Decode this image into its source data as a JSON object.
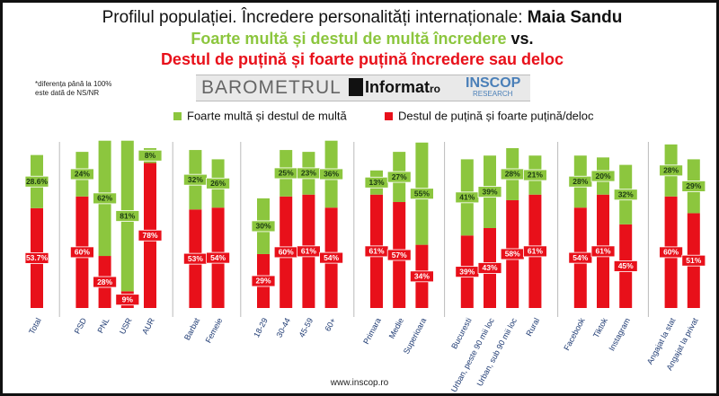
{
  "header": {
    "title": "Profilul populației. Încredere personalități internaționale: ",
    "title_name": "Maia Sandu",
    "subtitle_positive": "Foarte multă și destul de multă încredere",
    "subtitle_vs": " vs.",
    "subtitle_negative": "Destul de puțină și foarte puțină încredere sau deloc"
  },
  "note": [
    "*diferența până la 100%",
    "este dată de NS/NR"
  ],
  "logos": {
    "barometrul": "BAROMETRUL",
    "informat": "Informat",
    "informat_suffix": "ro",
    "inscop": "INSCOP",
    "inscop_sub": "RESEARCH"
  },
  "footer": "www.inscop.ro",
  "chart_data": {
    "type": "stacked-bar",
    "categories": [
      "Total",
      null,
      "PSD",
      "PNL",
      "USR",
      "AUR",
      null,
      "Barbat",
      "Femeie",
      null,
      "18-29",
      "30-44",
      "45-59",
      "60+",
      null,
      "Primara",
      "Medie",
      "Superioara",
      null,
      "Bucuresti",
      "Urban, peste 90 mii loc",
      "Urban, sub 90 mii loc",
      "Rural",
      null,
      "Facebook",
      "Tiktok",
      "Instagram",
      null,
      "Angajat la stat",
      "Angajat la privat"
    ],
    "series": [
      {
        "name": "Destul de puțină și foarte puțină/deloc",
        "color": "#e8101a",
        "values": [
          53.7,
          null,
          60,
          28,
          9,
          78,
          null,
          53,
          54,
          null,
          29,
          60,
          61,
          54,
          null,
          61,
          57,
          34,
          null,
          39,
          43,
          58,
          61,
          null,
          54,
          61,
          45,
          null,
          60,
          51
        ],
        "value_labels": [
          "53.7%",
          null,
          "60%",
          "28%",
          "9%",
          "78%",
          null,
          "53%",
          "54%",
          null,
          "29%",
          "60%",
          "61%",
          "54%",
          null,
          "61%",
          "57%",
          "34%",
          null,
          "39%",
          "43%",
          "58%",
          "61%",
          null,
          "54%",
          "61%",
          "45%",
          null,
          "60%",
          "51%"
        ]
      },
      {
        "name": "Foarte multă și destul de multă",
        "color": "#8cc63e",
        "values": [
          28.6,
          null,
          24,
          62,
          81,
          8,
          null,
          32,
          26,
          null,
          30,
          25,
          23,
          36,
          null,
          13,
          27,
          55,
          null,
          41,
          39,
          28,
          21,
          null,
          28,
          20,
          32,
          null,
          28,
          29
        ],
        "value_labels": [
          "28.6%",
          null,
          "24%",
          "62%",
          "81%",
          "8%",
          null,
          "32%",
          "26%",
          null,
          "30%",
          "25%",
          "23%",
          "36%",
          null,
          "13%",
          "27%",
          "55%",
          null,
          "41%",
          "39%",
          "28%",
          "21%",
          null,
          "28%",
          "20%",
          "32%",
          null,
          "28%",
          "29%"
        ]
      }
    ]
  }
}
